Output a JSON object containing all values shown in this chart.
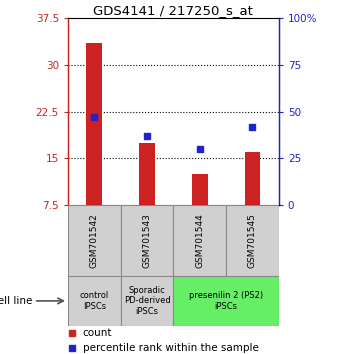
{
  "title": "GDS4141 / 217250_s_at",
  "samples": [
    "GSM701542",
    "GSM701543",
    "GSM701544",
    "GSM701545"
  ],
  "counts": [
    33.5,
    17.5,
    12.5,
    16.0
  ],
  "percentiles": [
    47,
    37,
    30,
    42
  ],
  "ylim_left": [
    7.5,
    37.5
  ],
  "ylim_right": [
    0,
    100
  ],
  "yticks_left": [
    7.5,
    15.0,
    22.5,
    30.0,
    37.5
  ],
  "yticks_right": [
    0,
    25,
    50,
    75,
    100
  ],
  "ytick_labels_left": [
    "7.5",
    "15",
    "22.5",
    "30",
    "37.5"
  ],
  "ytick_labels_right": [
    "0",
    "25",
    "50",
    "75",
    "100%"
  ],
  "bar_color": "#cc2222",
  "dot_color": "#2222cc",
  "bar_bottom": 7.5,
  "bar_width": 0.3,
  "groups": [
    {
      "label": "control\nIPSCs",
      "start": 0,
      "end": 1,
      "color": "#d0d0d0"
    },
    {
      "label": "Sporadic\nPD-derived\niPSCs",
      "start": 1,
      "end": 2,
      "color": "#d0d0d0"
    },
    {
      "label": "presenilin 2 (PS2)\niPSCs",
      "start": 2,
      "end": 4,
      "color": "#66ee66"
    }
  ],
  "legend_count_label": "count",
  "legend_pct_label": "percentile rank within the sample",
  "cell_line_label": "cell line",
  "left_tick_color": "#cc2222",
  "right_tick_color": "#2222cc",
  "box_color": "#d0d0d0",
  "bg_color": "#ffffff"
}
